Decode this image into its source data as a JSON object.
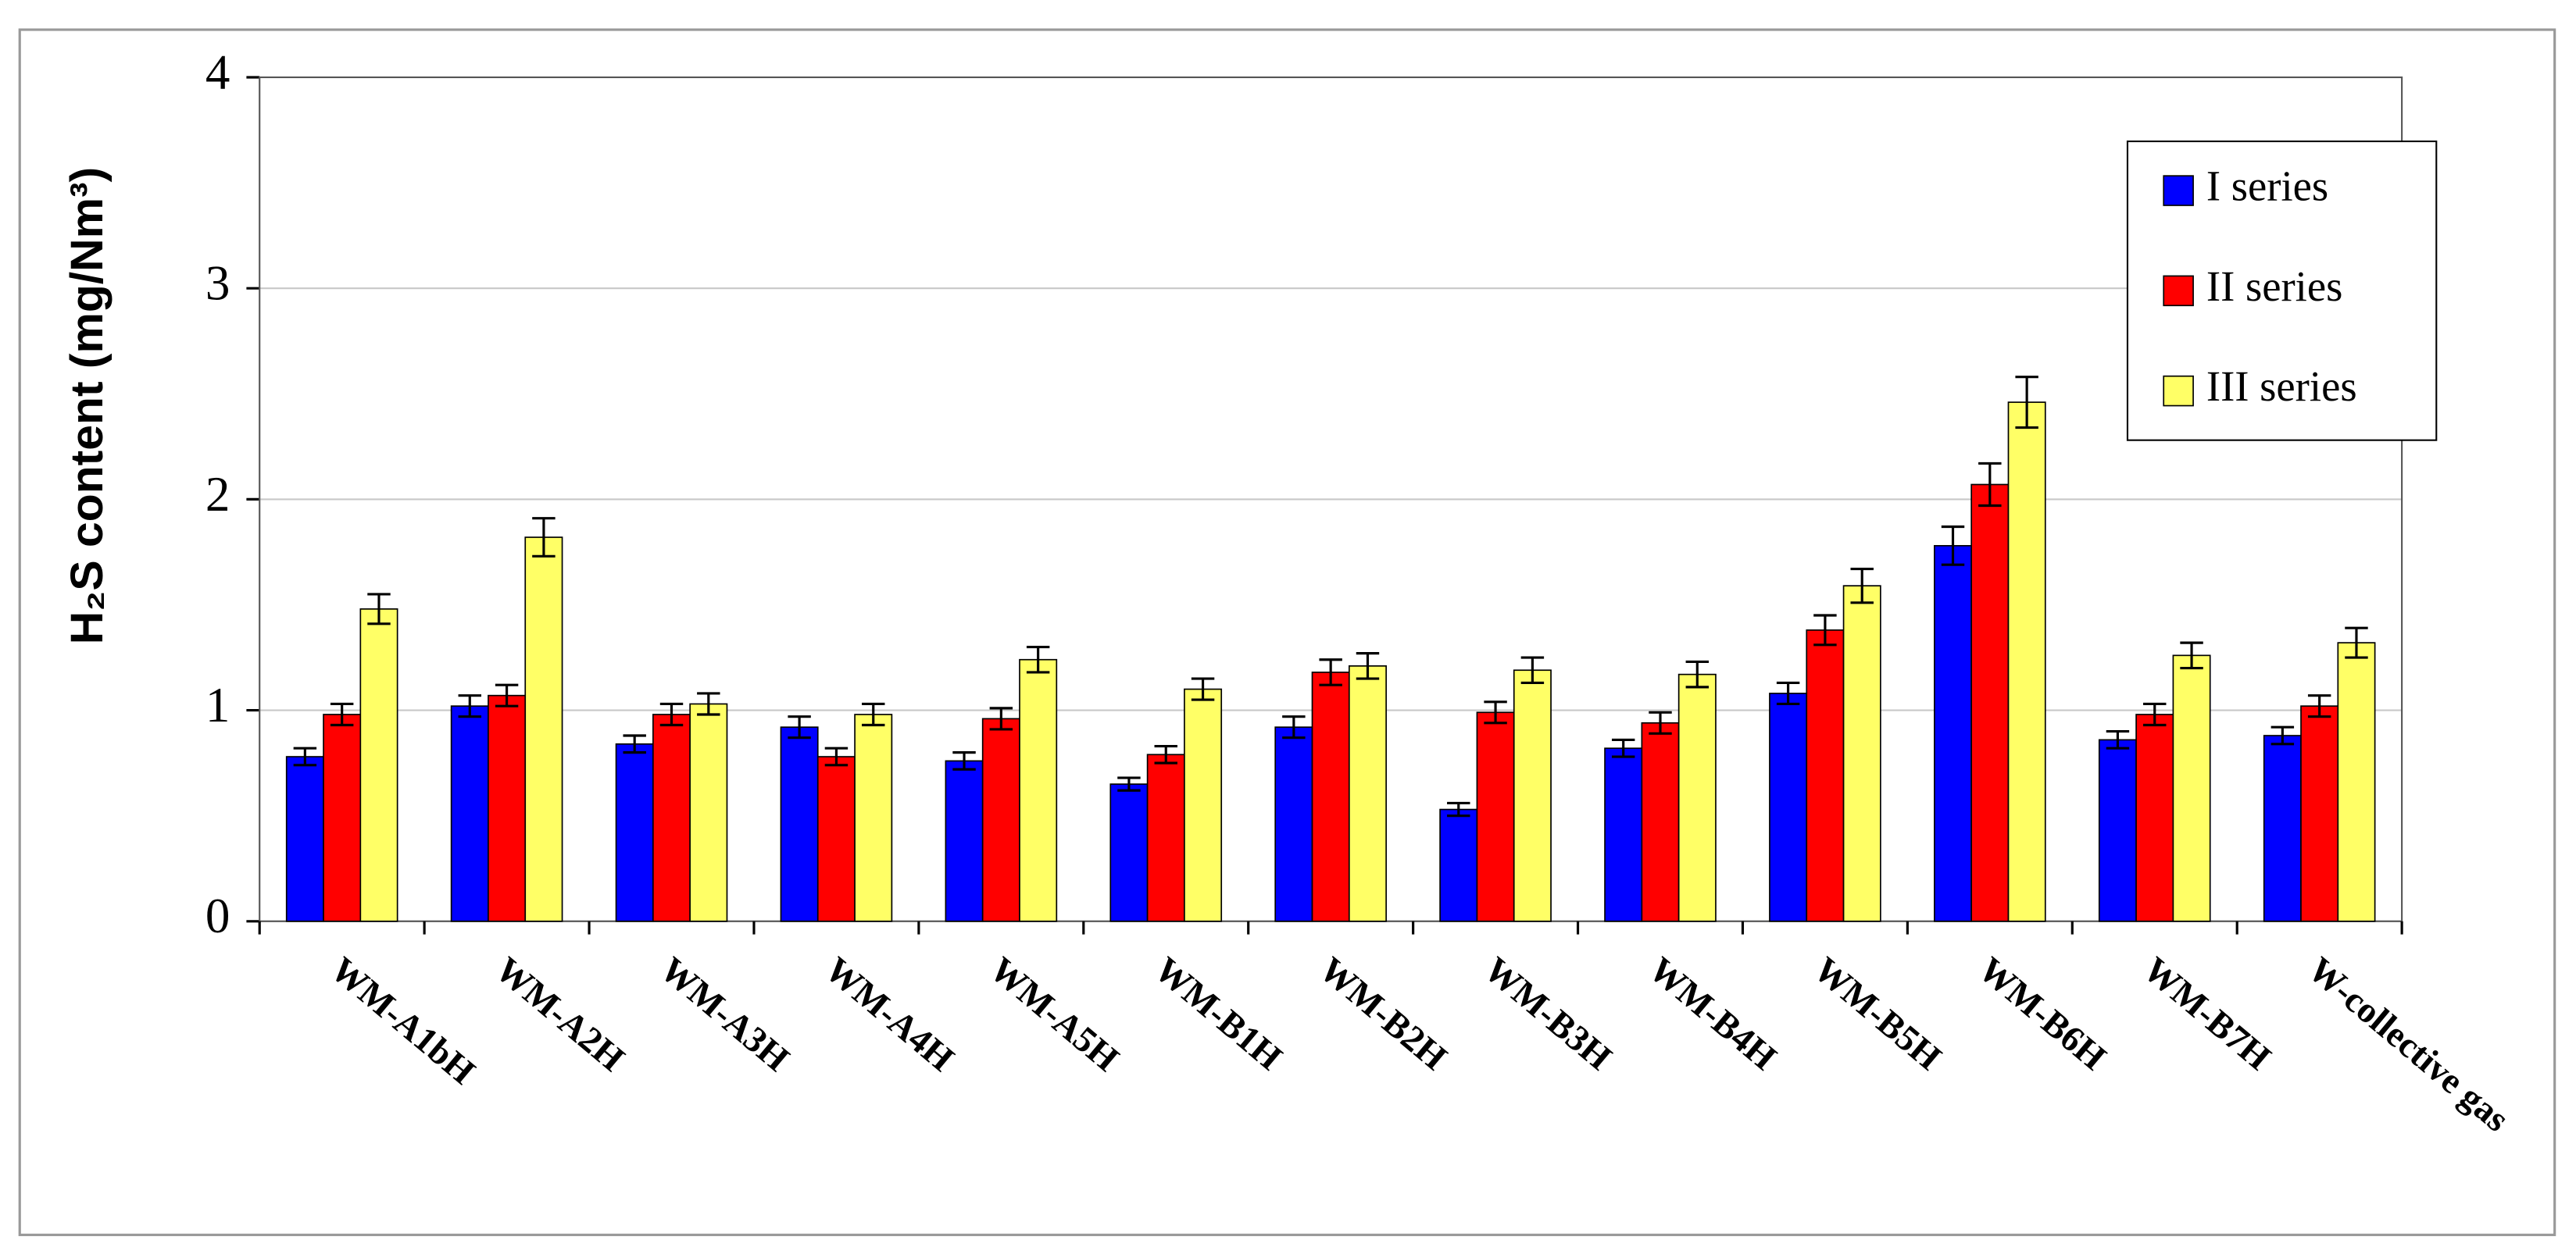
{
  "chart_data": {
    "type": "bar",
    "y_label": "H₂S content (mg/Nm³)",
    "categories": [
      "WM-A1bH",
      "WM-A2H",
      "WM-A3H",
      "WM-A4H",
      "WM-A5H",
      "WM-B1H",
      "WM-B2H",
      "WM-B3H",
      "WM-B4H",
      "WM-B5H",
      "WM-B6H",
      "WM-B7H",
      "W-collective gas"
    ],
    "series": [
      {
        "name": "I series",
        "color": "#0000ff",
        "values": [
          0.78,
          1.02,
          0.84,
          0.92,
          0.76,
          0.65,
          0.92,
          0.53,
          0.82,
          1.08,
          1.78,
          0.86,
          0.88
        ],
        "errors": [
          0.04,
          0.05,
          0.04,
          0.05,
          0.04,
          0.03,
          0.05,
          0.03,
          0.04,
          0.05,
          0.09,
          0.04,
          0.04
        ]
      },
      {
        "name": "II series",
        "color": "#ff0000",
        "values": [
          0.98,
          1.07,
          0.98,
          0.78,
          0.96,
          0.79,
          1.18,
          0.99,
          0.94,
          1.38,
          2.07,
          0.98,
          1.02
        ],
        "errors": [
          0.05,
          0.05,
          0.05,
          0.04,
          0.05,
          0.04,
          0.06,
          0.05,
          0.05,
          0.07,
          0.1,
          0.05,
          0.05
        ]
      },
      {
        "name": "III series",
        "color": "#ffff66",
        "values": [
          1.48,
          1.82,
          1.03,
          0.98,
          1.24,
          1.1,
          1.21,
          1.19,
          1.17,
          1.59,
          2.46,
          1.26,
          1.32
        ],
        "errors": [
          0.07,
          0.09,
          0.05,
          0.05,
          0.06,
          0.05,
          0.06,
          0.06,
          0.06,
          0.08,
          0.12,
          0.06,
          0.07
        ]
      }
    ],
    "ylim": [
      0,
      4
    ],
    "yticks": [
      0,
      1,
      2,
      3,
      4
    ],
    "grid": true,
    "legend": "upper right"
  }
}
